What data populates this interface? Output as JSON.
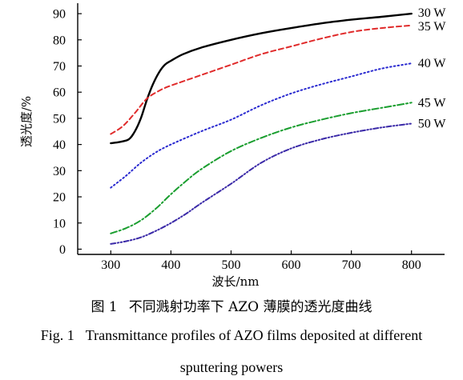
{
  "chart_data": {
    "type": "line",
    "xlabel": "波长/nm",
    "ylabel": "透光度/%",
    "xlim": [
      245,
      855
    ],
    "ylim": [
      -2,
      94
    ],
    "xticks": [
      300,
      400,
      500,
      600,
      700,
      800
    ],
    "yticks": [
      0,
      10,
      20,
      30,
      40,
      50,
      60,
      70,
      80,
      90
    ],
    "grid": false,
    "legend": "series labels at right end of each curve",
    "series": [
      {
        "name": "30 W",
        "color": "#000000",
        "style": "solid",
        "x": [
          300,
          315,
          330,
          340,
          350,
          360,
          370,
          380,
          390,
          400,
          420,
          450,
          500,
          550,
          600,
          650,
          700,
          750,
          800
        ],
        "y": [
          40.5,
          41,
          42,
          45,
          50,
          57,
          63,
          67.5,
          70.5,
          72,
          74.5,
          77,
          80,
          82.5,
          84.5,
          86.3,
          87.7,
          88.8,
          90
        ]
      },
      {
        "name": "35 W",
        "color": "#e02b2b",
        "style": "dashed",
        "x": [
          300,
          320,
          340,
          360,
          380,
          400,
          450,
          500,
          550,
          600,
          650,
          700,
          750,
          800
        ],
        "y": [
          44,
          47,
          52,
          57.5,
          60.5,
          62.5,
          66.5,
          70.5,
          74.5,
          77.5,
          80.5,
          83,
          84.5,
          85.5
        ]
      },
      {
        "name": "40 W",
        "color": "#2a2ad0",
        "style": "dotted",
        "x": [
          300,
          325,
          350,
          375,
          400,
          450,
          500,
          550,
          600,
          650,
          700,
          750,
          800
        ],
        "y": [
          23.5,
          28,
          33,
          37,
          40,
          45,
          49.5,
          55,
          59.5,
          63,
          66,
          69,
          71
        ]
      },
      {
        "name": "45 W",
        "color": "#1a9e2f",
        "style": "dashdot",
        "x": [
          300,
          325,
          350,
          375,
          400,
          425,
          450,
          500,
          550,
          600,
          650,
          700,
          750,
          800
        ],
        "y": [
          6,
          8,
          11,
          15.5,
          21,
          26,
          30.5,
          37.5,
          42.5,
          46.5,
          49.5,
          52,
          54,
          56
        ]
      },
      {
        "name": "50 W",
        "color": "#3b2aa8",
        "style": "dashdotdot",
        "x": [
          300,
          325,
          350,
          375,
          400,
          425,
          450,
          500,
          550,
          600,
          650,
          700,
          750,
          800
        ],
        "y": [
          2,
          3,
          4.5,
          7,
          10,
          13.5,
          17.5,
          25,
          33,
          38.5,
          42,
          44.5,
          46.5,
          48
        ]
      }
    ]
  },
  "caption": {
    "cn_fig": "图 1",
    "cn_text": "不同溅射功率下 AZO 薄膜的透光度曲线",
    "en_fig": "Fig. 1",
    "en_line1": "Transmittance profiles of AZO films deposited at different",
    "en_line2": "sputtering powers"
  }
}
